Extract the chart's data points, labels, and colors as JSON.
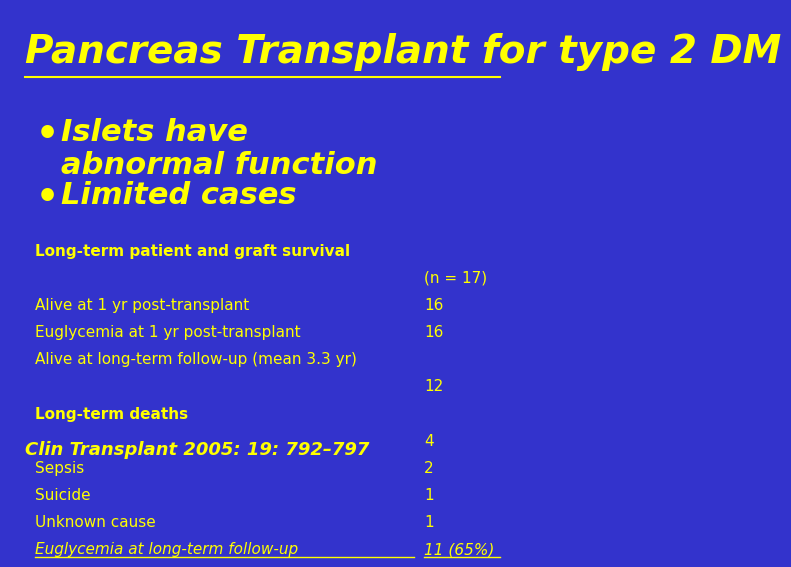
{
  "bg_color": "#3333CC",
  "title": "Pancreas Transplant for type 2 DM",
  "title_color": "#FFFF00",
  "title_fontsize": 28,
  "bullet_color": "#FFFF00",
  "bullet_fontsize": 22,
  "bullets": [
    "Islets have\nabnormal function",
    "Limited cases"
  ],
  "table_label_color": "#FFFF00",
  "table_fontsize": 11,
  "section_header_fontsize": 11,
  "rows": [
    {
      "label": "Long-term patient and graft survival",
      "value": "",
      "section": true,
      "italic": false,
      "underline": false
    },
    {
      "label": "",
      "value": "(n = 17)",
      "section": false,
      "italic": false,
      "underline": false
    },
    {
      "label": "Alive at 1 yr post-transplant",
      "value": "16",
      "section": false,
      "italic": false,
      "underline": false
    },
    {
      "label": "Euglycemia at 1 yr post-transplant",
      "value": "16",
      "section": false,
      "italic": false,
      "underline": false
    },
    {
      "label": "Alive at long-term follow-up (mean 3.3 yr)",
      "value": "",
      "section": false,
      "italic": false,
      "underline": false
    },
    {
      "label": "",
      "value": "12",
      "section": false,
      "italic": false,
      "underline": false
    },
    {
      "label": "Long-term deaths",
      "value": "",
      "section": true,
      "italic": false,
      "underline": false
    },
    {
      "label": "",
      "value": "4",
      "section": false,
      "italic": false,
      "underline": false
    },
    {
      "label": "Sepsis",
      "value": "2",
      "section": false,
      "italic": false,
      "underline": false
    },
    {
      "label": "Suicide",
      "value": "1",
      "section": false,
      "italic": false,
      "underline": false
    },
    {
      "label": "Unknown cause",
      "value": "1",
      "section": false,
      "italic": false,
      "underline": false
    },
    {
      "label": "Euglycemia at long-term follow-up",
      "value": "11 (65%)",
      "section": false,
      "italic": true,
      "underline": true
    }
  ],
  "citation": "Clin Transplant 2005: 19: 792–797",
  "citation_color": "#FFFF00",
  "citation_fontsize": 13
}
